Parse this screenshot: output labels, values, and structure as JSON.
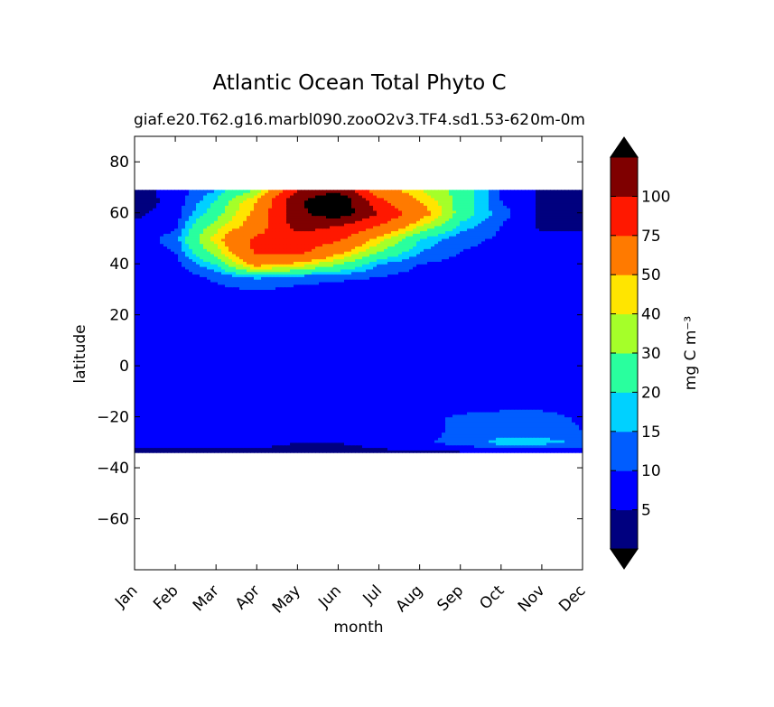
{
  "chart_data": {
    "type": "heatmap",
    "plot_kind": "filled-contour",
    "title": "Atlantic Ocean Total Phyto C",
    "subtitle_left": "giaf.e20.T62.g16.marbl090.zooO2v3.TF4.sd1.53-62",
    "subtitle_right": "0m-0m",
    "xlabel": "month",
    "ylabel": "latitude",
    "x_tick_labels": [
      "Jan",
      "Feb",
      "Mar",
      "Apr",
      "May",
      "Jun",
      "Jul",
      "Aug",
      "Sep",
      "Oct",
      "Nov",
      "Dec"
    ],
    "y_range": [
      -80,
      90
    ],
    "y_ticks": [
      -60,
      -40,
      -20,
      0,
      20,
      40,
      60,
      80
    ],
    "y_tick_labels": [
      "−60",
      "−40",
      "−20",
      "0",
      "20",
      "40",
      "60",
      "80"
    ],
    "data_lat_range": [
      -34,
      69
    ],
    "colorbar": {
      "label": "mg C m⁻³",
      "levels": [
        5,
        10,
        15,
        20,
        30,
        40,
        50,
        75,
        100
      ],
      "tick_labels": [
        "5",
        "10",
        "15",
        "20",
        "30",
        "40",
        "50",
        "75",
        "100"
      ],
      "colors": [
        "#00007f",
        "#0000ff",
        "#005dff",
        "#00d1ff",
        "#29ff9e",
        "#a5ff29",
        "#ffe500",
        "#ff7a00",
        "#ff1800",
        "#7f0000"
      ],
      "under_color": "#000000",
      "over_color": "#000000",
      "extend": "both"
    },
    "grid_months": [
      "Jan",
      "Feb",
      "Mar",
      "Apr",
      "May",
      "Jun",
      "Jul",
      "Aug",
      "Sep",
      "Oct",
      "Nov",
      "Dec"
    ],
    "grid_latitudes": [
      -34,
      -30,
      -25,
      -20,
      -15,
      -10,
      -5,
      0,
      5,
      10,
      15,
      20,
      25,
      30,
      35,
      40,
      45,
      50,
      55,
      60,
      65,
      69
    ],
    "grid_values": [
      [
        4,
        4,
        4,
        4,
        4,
        4,
        4,
        4,
        4,
        4,
        4,
        4
      ],
      [
        6,
        6,
        6,
        6,
        5,
        5,
        6,
        9,
        12,
        17,
        17,
        14
      ],
      [
        7,
        7,
        6,
        6,
        6,
        6,
        6,
        8,
        11,
        12,
        12,
        10
      ],
      [
        7,
        7,
        7,
        7,
        7,
        7,
        7,
        8,
        11,
        12,
        12,
        9
      ],
      [
        7,
        7,
        7,
        7,
        7,
        7,
        7,
        7,
        7,
        8,
        8,
        8
      ],
      [
        7,
        7,
        7,
        7,
        7,
        7,
        7,
        7,
        7,
        7,
        7,
        7
      ],
      [
        7,
        7,
        7,
        7,
        7,
        7,
        7,
        7,
        7,
        7,
        7,
        7
      ],
      [
        8,
        8,
        8,
        8,
        8,
        8,
        8,
        8,
        8,
        8,
        8,
        8
      ],
      [
        7,
        7,
        7,
        7,
        7,
        7,
        7,
        7,
        7,
        7,
        7,
        7
      ],
      [
        7,
        7,
        7,
        7,
        7,
        7,
        7,
        7,
        7,
        7,
        7,
        7
      ],
      [
        7,
        7,
        7,
        7,
        7,
        7,
        7,
        7,
        7,
        7,
        7,
        7
      ],
      [
        7,
        7,
        7,
        7,
        7,
        7,
        7,
        7,
        7,
        7,
        7,
        7
      ],
      [
        7,
        7,
        7,
        7,
        7,
        7,
        7,
        7,
        7,
        7,
        7,
        7
      ],
      [
        6,
        7,
        9,
        10,
        9,
        8,
        8,
        7,
        7,
        6,
        6,
        6
      ],
      [
        6,
        7,
        11,
        16,
        12,
        11,
        10,
        8,
        7,
        6,
        6,
        6
      ],
      [
        7,
        8,
        20,
        55,
        45,
        30,
        15,
        10,
        8,
        7,
        7,
        7
      ],
      [
        8,
        10,
        35,
        80,
        85,
        55,
        30,
        15,
        10,
        8,
        7,
        7
      ],
      [
        7,
        12,
        45,
        80,
        90,
        80,
        45,
        20,
        12,
        9,
        6,
        6
      ],
      [
        6,
        9,
        35,
        60,
        110,
        100,
        75,
        40,
        18,
        10,
        4,
        4
      ],
      [
        4,
        7,
        25,
        55,
        120,
        140,
        100,
        60,
        25,
        12,
        4,
        3
      ],
      [
        2,
        7,
        20,
        50,
        120,
        150,
        80,
        50,
        25,
        10,
        4,
        2
      ],
      [
        3,
        7,
        15,
        30,
        100,
        120,
        60,
        40,
        25,
        10,
        4,
        3
      ]
    ]
  }
}
